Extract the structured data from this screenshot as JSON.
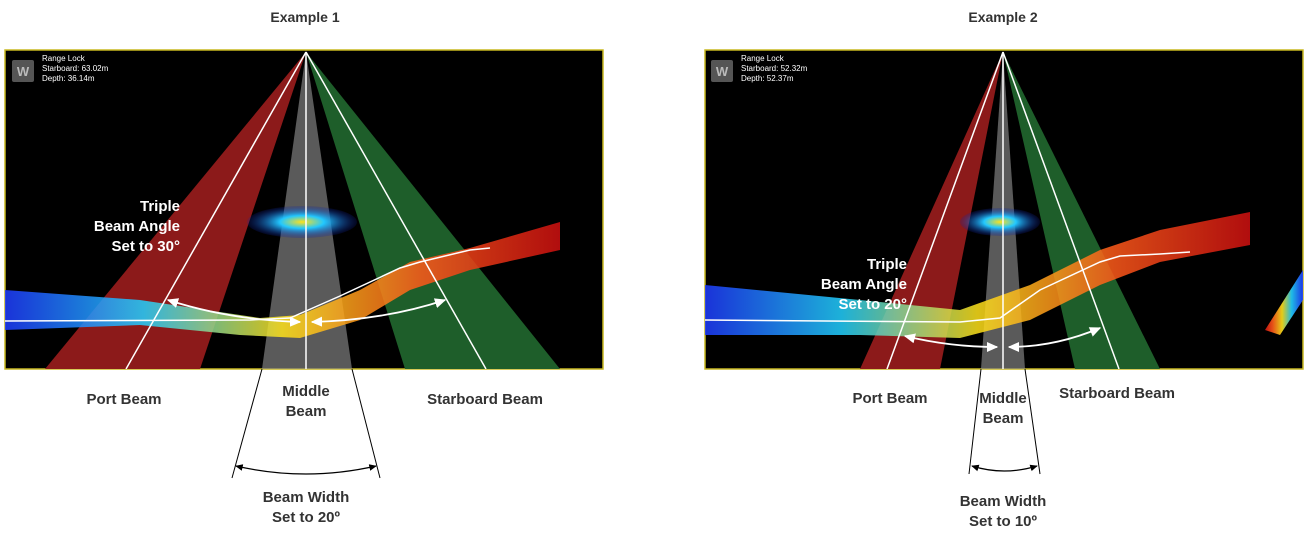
{
  "examples": [
    {
      "title": "Example 1",
      "overlay": {
        "line1": "Range Lock",
        "line2": "Starboard: 63.02m",
        "line3": "Depth: 36.14m"
      },
      "triple_angle": {
        "line1": "Triple",
        "line2": "Beam Angle",
        "line3": "Set to 30°"
      },
      "beam_width": {
        "line1": "Beam Width",
        "line2": "Set to 20º"
      },
      "port_label": "Port Beam",
      "middle": {
        "line1": "Middle",
        "line2": "Beam"
      },
      "starboard_label": "Starboard Beam"
    },
    {
      "title": "Example 2",
      "overlay": {
        "line1": "Range Lock",
        "line2": "Starboard: 52.32m",
        "line3": "Depth: 52.37m"
      },
      "triple_angle": {
        "line1": "Triple",
        "line2": "Beam Angle",
        "line3": "Set to 20°"
      },
      "beam_width": {
        "line1": "Beam Width",
        "line2": "Set to 10º"
      },
      "port_label": "Port Beam",
      "middle": {
        "line1": "Middle",
        "line2": "Beam"
      },
      "starboard_label": "Starboard Beam"
    }
  ],
  "colors": {
    "port": "#8c1a1a",
    "middle": "#8a8a8a",
    "starboard": "#1e5e2a",
    "screen_bg": "#000000",
    "screen_border": "#c8b820",
    "text": "#333333"
  },
  "icons": {
    "logo": "w-logo-icon"
  }
}
